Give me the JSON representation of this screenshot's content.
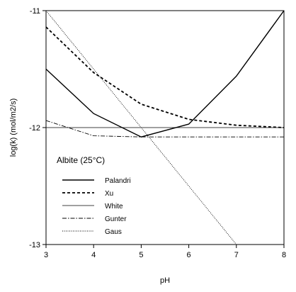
{
  "chart_data": {
    "type": "line",
    "title": "",
    "xlabel": "pH",
    "ylabel": "log(k) (mol/m2/s)",
    "xlim": [
      3,
      8
    ],
    "ylim": [
      -13,
      -11
    ],
    "grid": false,
    "x_ticks": [
      "3",
      "4",
      "5",
      "6",
      "7",
      "8"
    ],
    "y_ticks": [
      "-11",
      "-12",
      "-13"
    ],
    "legend": {
      "title": "Albite (25°C)",
      "placement": "lower-left"
    },
    "series": [
      {
        "name": "Palandri",
        "style": "solid-thick",
        "color": "#000000",
        "x": [
          3,
          4,
          5,
          6,
          7,
          8
        ],
        "y": [
          -11.5,
          -11.88,
          -12.08,
          -11.97,
          -11.56,
          -11.0
        ]
      },
      {
        "name": "Xu",
        "style": "dashed",
        "color": "#000000",
        "x": [
          3,
          4,
          5,
          6,
          7,
          8
        ],
        "y": [
          -11.14,
          -11.53,
          -11.8,
          -11.93,
          -11.98,
          -12.0
        ]
      },
      {
        "name": "White",
        "style": "solid-thin",
        "color": "#000000",
        "x": [
          3,
          8
        ],
        "y": [
          -12.0,
          -12.0
        ]
      },
      {
        "name": "Gunter",
        "style": "dash-dot",
        "color": "#000000",
        "x": [
          3,
          4,
          5,
          6,
          7,
          8
        ],
        "y": [
          -11.94,
          -12.07,
          -12.08,
          -12.08,
          -12.08,
          -12.08
        ]
      },
      {
        "name": "Gaus",
        "style": "dotted",
        "color": "#000000",
        "x": [
          3,
          7
        ],
        "y": [
          -11.0,
          -13.0
        ]
      }
    ]
  }
}
